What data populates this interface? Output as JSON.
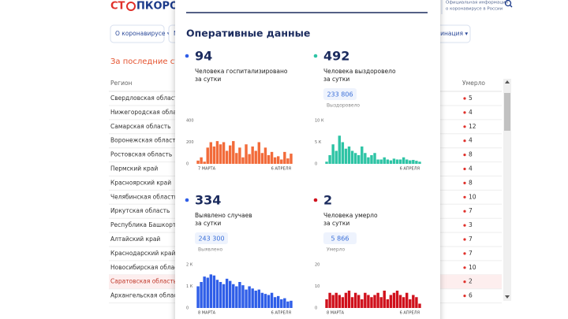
{
  "header": {
    "logo_red": "СТ",
    "logo_blue": "ПКОРОНАВИ",
    "info": [
      "Официальная информация",
      "о коронавирусе в России"
    ]
  },
  "nav": [
    "О коронавирусе ▾",
    "М",
    "цинация ▾"
  ],
  "section_title": "За последние сутк",
  "table": {
    "columns": [
      "Регион",
      "Умерло"
    ],
    "rows": [
      [
        "Свердловская область",
        5
      ],
      [
        "Нижегородская область",
        4
      ],
      [
        "Самарская область",
        12
      ],
      [
        "Воронежская область",
        4
      ],
      [
        "Ростовская область",
        8
      ],
      [
        "Пермский край",
        4
      ],
      [
        "Красноярский край",
        8
      ],
      [
        "Челябинская область",
        10
      ],
      [
        "Иркутская область",
        7
      ],
      [
        "Республика Башкортоста",
        3
      ],
      [
        "Алтайский край",
        7
      ],
      [
        "Краснодарский край",
        7
      ],
      [
        "Новосибирская область",
        10
      ],
      [
        "Саратовская область",
        2
      ],
      [
        "Архангельская область",
        6
      ]
    ]
  },
  "modal": {
    "title": "Оперативные данные",
    "panels": [
      {
        "value": 94,
        "dot_color": "#2f5ee8",
        "label": [
          "Человека госпитализировано",
          "за сутки"
        ],
        "chart": {
          "type": "bar",
          "color": "#f26b3a",
          "ylim": [
            0,
            400
          ],
          "yticks": [
            0,
            200,
            400
          ],
          "categories": [
            "7 МАРТА",
            null,
            null,
            null,
            null,
            null,
            null,
            null,
            null,
            null,
            null,
            null,
            null,
            null,
            null,
            null,
            null,
            null,
            null,
            null,
            null,
            null,
            null,
            null,
            null,
            null,
            null,
            null,
            null,
            "6 АПРЕЛЯ"
          ],
          "values": [
            30,
            60,
            20,
            150,
            200,
            160,
            210,
            180,
            200,
            120,
            170,
            210,
            100,
            150,
            60,
            180,
            90,
            160,
            120,
            200,
            100,
            150,
            80,
            110,
            60,
            70,
            40,
            110,
            50,
            94
          ]
        }
      },
      {
        "value": 492,
        "dot_color": "#2ec4a5",
        "label": [
          "Человека выздоровело",
          "за сутки"
        ],
        "total": "233 806",
        "total_label": "Выздоровело",
        "chart": {
          "type": "bar",
          "color": "#2ec4a5",
          "ylim": [
            0,
            10000
          ],
          "yticks": [
            0,
            {
              "value": 5000,
              "label": "5 К"
            },
            {
              "value": 10000,
              "label": "10 К"
            }
          ],
          "categories": [
            null,
            null,
            null,
            null,
            null,
            null,
            null,
            null,
            null,
            null,
            null,
            null,
            null,
            null,
            null,
            null,
            null,
            null,
            null,
            null,
            null,
            null,
            null,
            null,
            null,
            null,
            null,
            null,
            null,
            "6 АПРЕЛЯ"
          ],
          "values": [
            500,
            2000,
            4500,
            3000,
            6500,
            5000,
            3500,
            4000,
            3000,
            2500,
            2000,
            4000,
            2500,
            1500,
            2000,
            2500,
            1000,
            1000,
            1500,
            1000,
            800,
            1200,
            1000,
            1000,
            1500,
            1000,
            800,
            900,
            700,
            492
          ]
        }
      },
      {
        "value": 334,
        "dot_color": "#2f5ee8",
        "label": [
          "Выявлено случаев",
          "за сутки"
        ],
        "total": "243 300",
        "total_label": "Выявлено",
        "chart": {
          "type": "bar",
          "color": "#2f5ee8",
          "ylim": [
            0,
            2000
          ],
          "yticks": [
            0,
            {
              "value": 1000,
              "label": "1 К"
            },
            {
              "value": 2000,
              "label": "2 К"
            }
          ],
          "categories": [
            "8 МАРТА",
            null,
            null,
            null,
            null,
            null,
            null,
            null,
            null,
            null,
            null,
            null,
            null,
            null,
            null,
            null,
            null,
            null,
            null,
            null,
            null,
            null,
            null,
            null,
            null,
            null,
            null,
            null,
            null,
            "6 АПРЕЛЯ"
          ],
          "values": [
            1000,
            1200,
            1450,
            1400,
            1550,
            1500,
            1300,
            1200,
            1100,
            1350,
            1250,
            1100,
            1000,
            1200,
            1050,
            850,
            1000,
            900,
            800,
            850,
            700,
            650,
            600,
            700,
            500,
            550,
            400,
            450,
            300,
            334
          ]
        }
      },
      {
        "value": 2,
        "dot_color": "#d0111c",
        "label": [
          "Человека умерло",
          "за сутки"
        ],
        "total": "5 866",
        "total_label": "Умерло",
        "chart": {
          "type": "bar",
          "color": "#d0111c",
          "ylim": [
            0,
            20
          ],
          "yticks": [
            0,
            10,
            20
          ],
          "categories": [
            "8 МАРТА",
            null,
            null,
            null,
            null,
            null,
            null,
            null,
            null,
            null,
            null,
            null,
            null,
            null,
            null,
            null,
            null,
            null,
            null,
            null,
            null,
            null,
            null,
            null,
            null,
            null,
            null,
            null,
            null,
            "6 АПРЕЛЯ"
          ],
          "values": [
            4,
            7,
            6,
            7,
            6,
            5,
            7,
            8,
            5,
            7,
            6,
            4,
            7,
            6,
            5,
            6,
            7,
            5,
            8,
            4,
            6,
            7,
            8,
            6,
            5,
            7,
            4,
            6,
            5,
            2
          ]
        }
      }
    ]
  }
}
